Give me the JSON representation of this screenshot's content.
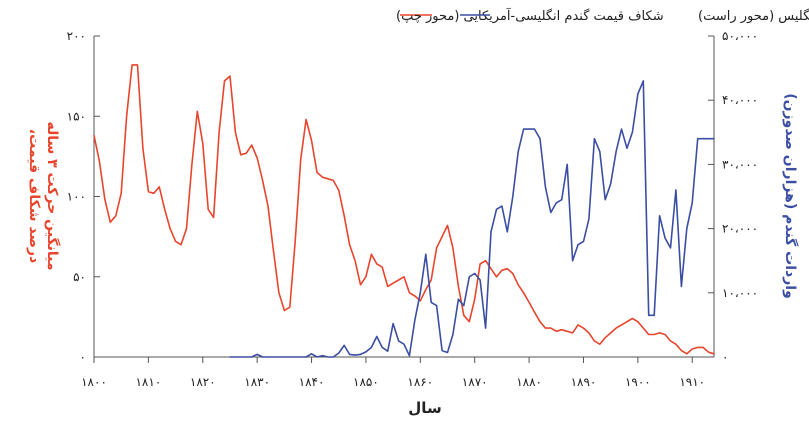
{
  "chart_data": {
    "type": "line",
    "xlabel": "سال",
    "x_ticks": [
      "۱۸۰۰",
      "۱۸۱۰",
      "۱۸۲۰",
      "۱۸۳۰",
      "۱۸۴۰",
      "۱۸۵۰",
      "۱۸۶۰",
      "۱۸۷۰",
      "۱۸۸۰",
      "۱۸۹۰",
      "۱۹۰۰",
      "۱۹۱۰"
    ],
    "x_tick_values": [
      1800,
      1810,
      1820,
      1830,
      1840,
      1850,
      1860,
      1870,
      1880,
      1890,
      1900,
      1910
    ],
    "xlim": [
      1800,
      1914
    ],
    "left_axis": {
      "label_lines": [
        "درصد شکاف قیمت،",
        "میانگین حرکت ۳ ساله"
      ],
      "ticks": [
        "۰",
        "۵۰",
        "۱۰۰",
        "۱۵۰",
        "۲۰۰"
      ],
      "tick_values": [
        0,
        50,
        100,
        150,
        200
      ],
      "ylim": [
        0,
        200
      ],
      "color": "#e8452c"
    },
    "right_axis": {
      "label": "واردات گندم (هزاران صدوزن)",
      "ticks": [
        "۰",
        "۱۰،۰۰۰",
        "۲۰،۰۰۰",
        "۳۰،۰۰۰",
        "۴۰،۰۰۰",
        "۵۰،۰۰۰"
      ],
      "tick_values": [
        0,
        10000,
        20000,
        30000,
        40000,
        50000
      ],
      "ylim": [
        0,
        50000
      ],
      "color": "#3b4ea3"
    },
    "legend": {
      "placement": "top"
    },
    "series": [
      {
        "name": "شکاف قیمت گندم انگلیسی-آمریکایی (محور چپ)",
        "axis": "left",
        "color": "#e8452c",
        "x": [
          1800,
          1801,
          1802,
          1803,
          1804,
          1805,
          1806,
          1807,
          1808,
          1809,
          1810,
          1811,
          1812,
          1813,
          1814,
          1815,
          1816,
          1817,
          1818,
          1819,
          1820,
          1821,
          1822,
          1823,
          1824,
          1825,
          1826,
          1827,
          1828,
          1829,
          1830,
          1831,
          1832,
          1833,
          1834,
          1835,
          1836,
          1837,
          1838,
          1839,
          1840,
          1841,
          1842,
          1843,
          1844,
          1845,
          1846,
          1847,
          1848,
          1849,
          1850,
          1851,
          1852,
          1853,
          1854,
          1855,
          1856,
          1857,
          1858,
          1859,
          1860,
          1861,
          1862,
          1863,
          1864,
          1865,
          1866,
          1867,
          1868,
          1869,
          1870,
          1871,
          1872,
          1873,
          1874,
          1875,
          1876,
          1877,
          1878,
          1879,
          1880,
          1881,
          1882,
          1883,
          1884,
          1885,
          1886,
          1887,
          1888,
          1889,
          1890,
          1891,
          1892,
          1893,
          1894,
          1895,
          1896,
          1897,
          1898,
          1899,
          1900,
          1901,
          1902,
          1903,
          1904,
          1905,
          1906,
          1907,
          1908,
          1909,
          1910,
          1911,
          1912,
          1913,
          1914
        ],
        "values": [
          138,
          122,
          98,
          84,
          88,
          102,
          150,
          182,
          182,
          130,
          103,
          102,
          106,
          92,
          80,
          72,
          70,
          80,
          120,
          153,
          133,
          92,
          87,
          140,
          172,
          175,
          140,
          126,
          127,
          132,
          124,
          110,
          94,
          66,
          40,
          29,
          31,
          72,
          123,
          148,
          135,
          115,
          112,
          111,
          110,
          104,
          88,
          70,
          60,
          45,
          50,
          64,
          58,
          56,
          44,
          46,
          48,
          50,
          40,
          38,
          35,
          42,
          48,
          68,
          75,
          82,
          68,
          44,
          26,
          22,
          36,
          58,
          60,
          55,
          50,
          54,
          55,
          52,
          45,
          40,
          34,
          28,
          22,
          18,
          18,
          16,
          17,
          16,
          15,
          20,
          18,
          15,
          10,
          8,
          12,
          15,
          18,
          20,
          22,
          24,
          22,
          18,
          14,
          14,
          15,
          14,
          10,
          8,
          4,
          2,
          5,
          6,
          6,
          3,
          2
        ]
      },
      {
        "name": "واردات گندم آمریکا توسط انگلیس (محور راست)",
        "axis": "right",
        "color": "#3b4ea3",
        "x": [
          1825,
          1826,
          1827,
          1828,
          1829,
          1830,
          1831,
          1832,
          1833,
          1834,
          1835,
          1836,
          1837,
          1838,
          1839,
          1840,
          1841,
          1842,
          1843,
          1844,
          1845,
          1846,
          1847,
          1848,
          1849,
          1850,
          1851,
          1852,
          1853,
          1854,
          1855,
          1856,
          1857,
          1858,
          1859,
          1860,
          1861,
          1862,
          1863,
          1864,
          1865,
          1866,
          1867,
          1868,
          1869,
          1870,
          1871,
          1872,
          1873,
          1874,
          1875,
          1876,
          1877,
          1878,
          1879,
          1880,
          1881,
          1882,
          1883,
          1884,
          1885,
          1886,
          1887,
          1888,
          1889,
          1890,
          1891,
          1892,
          1893,
          1894,
          1895,
          1896,
          1897,
          1898,
          1899,
          1900,
          1901,
          1902,
          1903,
          1904,
          1905,
          1906,
          1907,
          1908,
          1909,
          1910,
          1911,
          1912,
          1913,
          1914
        ],
        "values": [
          0,
          0,
          0,
          0,
          0,
          400,
          0,
          0,
          0,
          0,
          0,
          0,
          0,
          0,
          0,
          500,
          0,
          200,
          0,
          0,
          600,
          1800,
          400,
          300,
          400,
          800,
          1500,
          3200,
          1500,
          900,
          5200,
          2500,
          2000,
          200,
          5800,
          10000,
          16000,
          8500,
          8000,
          1000,
          700,
          3500,
          9000,
          8000,
          12500,
          13000,
          12000,
          4500,
          19500,
          23000,
          23500,
          19500,
          25000,
          32000,
          35500,
          35500,
          35500,
          34000,
          26500,
          22500,
          24000,
          24500,
          30000,
          15000,
          17500,
          18000,
          21500,
          34000,
          32000,
          24500,
          27000,
          32000,
          35500,
          32500,
          35000,
          41000,
          43000,
          6500,
          6500,
          22000,
          18500,
          17000,
          26000,
          11000,
          20000,
          24000,
          34000,
          34000,
          34000,
          34000
        ]
      }
    ]
  }
}
